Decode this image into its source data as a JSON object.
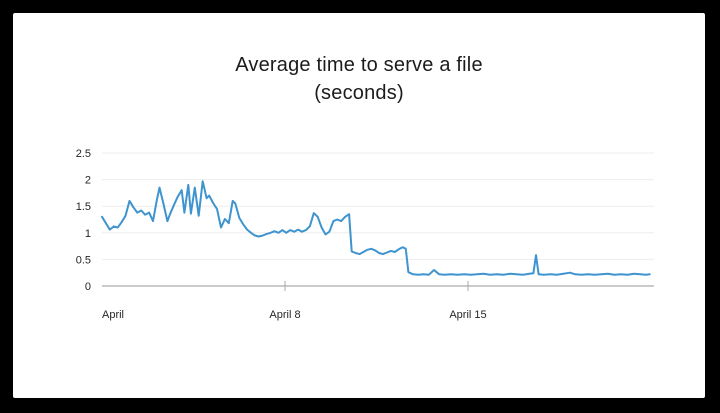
{
  "frame_bg": "#000000",
  "card_bg": "#ffffff",
  "chart": {
    "title_line1": "Average time to serve a file",
    "title_line2": "(seconds)",
    "line_color": "#3f94d0",
    "grid_color": "#ededed",
    "baseline_color": "#cbcbcb",
    "tick_color": "#a8a8a8",
    "label_color": "#262626"
  },
  "chart_data": {
    "type": "line",
    "title": "Average time to serve a file",
    "subtitle": "(seconds)",
    "xlabel": "",
    "ylabel": "seconds",
    "x_unit": "day of April",
    "xlim": [
      1,
      22
    ],
    "ylim": [
      0,
      2.5
    ],
    "y_ticks": [
      0,
      0.5,
      1,
      1.5,
      2,
      2.5
    ],
    "x_ticks": [
      {
        "day": 1,
        "label": "April"
      },
      {
        "day": 8,
        "label": "April 8"
      },
      {
        "day": 15,
        "label": "April 15"
      }
    ],
    "grid": "horizontal",
    "legend": "none",
    "series": [
      {
        "name": "Average time to serve a file (seconds)",
        "x": [
          1.0,
          1.15,
          1.3,
          1.45,
          1.6,
          1.75,
          1.9,
          2.05,
          2.2,
          2.35,
          2.5,
          2.65,
          2.8,
          2.95,
          3.1,
          3.2,
          3.35,
          3.5,
          3.6,
          3.75,
          3.9,
          4.05,
          4.15,
          4.3,
          4.4,
          4.55,
          4.7,
          4.85,
          5.0,
          5.1,
          5.25,
          5.4,
          5.55,
          5.7,
          5.85,
          6.0,
          6.1,
          6.25,
          6.4,
          6.55,
          6.7,
          6.85,
          7.0,
          7.15,
          7.3,
          7.45,
          7.6,
          7.75,
          7.9,
          8.05,
          8.2,
          8.35,
          8.5,
          8.65,
          8.8,
          8.95,
          9.1,
          9.25,
          9.4,
          9.55,
          9.7,
          9.85,
          10.0,
          10.15,
          10.3,
          10.45,
          10.55,
          10.7,
          10.85,
          11.0,
          11.15,
          11.3,
          11.45,
          11.6,
          11.75,
          11.9,
          12.05,
          12.2,
          12.35,
          12.5,
          12.62,
          12.72,
          12.9,
          13.1,
          13.3,
          13.5,
          13.7,
          13.9,
          14.1,
          14.35,
          14.6,
          14.85,
          15.1,
          15.35,
          15.6,
          15.85,
          16.1,
          16.35,
          16.6,
          16.85,
          17.1,
          17.35,
          17.5,
          17.6,
          17.7,
          17.9,
          18.15,
          18.4,
          18.65,
          18.9,
          19.1,
          19.35,
          19.6,
          19.85,
          20.1,
          20.35,
          20.6,
          20.85,
          21.1,
          21.35,
          21.6,
          21.8,
          21.95
        ],
        "values": [
          1.3,
          1.18,
          1.06,
          1.12,
          1.1,
          1.2,
          1.32,
          1.6,
          1.48,
          1.38,
          1.42,
          1.34,
          1.38,
          1.22,
          1.62,
          1.85,
          1.55,
          1.22,
          1.35,
          1.52,
          1.68,
          1.8,
          1.38,
          1.9,
          1.36,
          1.85,
          1.32,
          1.97,
          1.65,
          1.7,
          1.56,
          1.45,
          1.1,
          1.26,
          1.18,
          1.6,
          1.55,
          1.28,
          1.16,
          1.06,
          1.0,
          0.95,
          0.93,
          0.95,
          0.98,
          1.0,
          1.03,
          1.0,
          1.05,
          1.0,
          1.05,
          1.02,
          1.06,
          1.02,
          1.05,
          1.12,
          1.37,
          1.3,
          1.1,
          0.97,
          1.02,
          1.22,
          1.25,
          1.22,
          1.3,
          1.35,
          0.65,
          0.62,
          0.6,
          0.64,
          0.68,
          0.7,
          0.67,
          0.62,
          0.6,
          0.63,
          0.66,
          0.64,
          0.69,
          0.73,
          0.7,
          0.26,
          0.22,
          0.21,
          0.22,
          0.21,
          0.3,
          0.22,
          0.21,
          0.22,
          0.21,
          0.22,
          0.21,
          0.22,
          0.23,
          0.21,
          0.22,
          0.21,
          0.23,
          0.22,
          0.21,
          0.23,
          0.24,
          0.58,
          0.22,
          0.21,
          0.22,
          0.21,
          0.23,
          0.25,
          0.22,
          0.21,
          0.22,
          0.21,
          0.22,
          0.23,
          0.21,
          0.22,
          0.21,
          0.23,
          0.22,
          0.21,
          0.22
        ]
      }
    ]
  }
}
